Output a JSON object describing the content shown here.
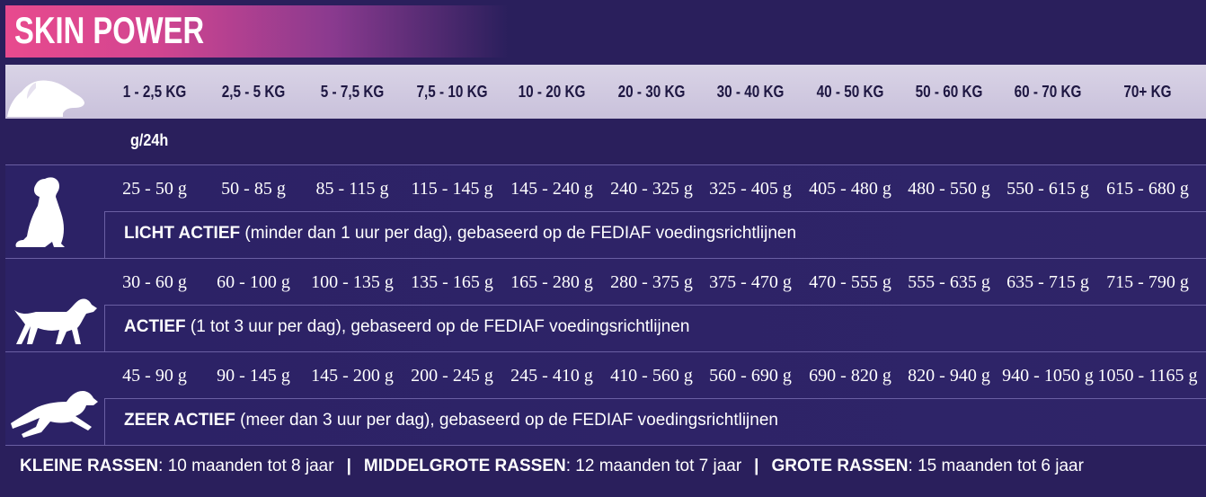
{
  "title": "SKIN POWER",
  "weight_ranges": [
    "1 - 2,5 KG",
    "2,5 - 5 KG",
    "5 - 7,5 KG",
    "7,5 - 10 KG",
    "10 - 20 KG",
    "20 - 30 KG",
    "30 - 40 KG",
    "40 - 50 KG",
    "50 - 60 KG",
    "60 - 70 KG",
    "70+ KG"
  ],
  "unit_label": "g/24h",
  "activity_levels": [
    {
      "icon": "sitting-dog-icon",
      "amounts": [
        "25 - 50 g",
        "50 - 85 g",
        "85 - 115 g",
        "115 - 145 g",
        "145 - 240 g",
        "240 - 325 g",
        "325 - 405 g",
        "405 - 480 g",
        "480 - 550 g",
        "550 - 615 g",
        "615 - 680 g"
      ],
      "label_bold": "LICHT ACTIEF",
      "label_rest": " (minder dan 1 uur per dag), gebaseerd op de FEDIAF voedingsrichtlijnen"
    },
    {
      "icon": "walking-dog-icon",
      "amounts": [
        "30 - 60 g",
        "60 - 100 g",
        "100 - 135 g",
        "135 - 165 g",
        "165 - 280 g",
        "280 - 375 g",
        "375 - 470 g",
        "470 - 555 g",
        "555 - 635 g",
        "635 - 715 g",
        "715 - 790 g"
      ],
      "label_bold": "ACTIEF",
      "label_rest": " (1 tot 3 uur per dag), gebaseerd op de FEDIAF voedingsrichtlijnen"
    },
    {
      "icon": "running-dog-icon",
      "amounts": [
        "45 - 90 g",
        "90 - 145 g",
        "145 - 200 g",
        "200 - 245 g",
        "245 - 410 g",
        "410 - 560 g",
        "560 - 690 g",
        "690 - 820 g",
        "820 - 940 g",
        "940 - 1050 g",
        "1050 - 1165 g"
      ],
      "label_bold": "ZEER ACTIEF",
      "label_rest": " (meer dan 3 uur per dag), gebaseerd op de FEDIAF voedingsrichtlijnen"
    }
  ],
  "footer": {
    "small_bold": "KLEINE RASSEN",
    "small_rest": ": 10 maanden tot 8 jaar",
    "medium_bold": "MIDDELGROTE RASSEN",
    "medium_rest": ": 12 maanden tot 7 jaar",
    "large_bold": "GROTE RASSEN",
    "large_rest": ": 15 maanden tot 6 jaar",
    "separator": "|"
  },
  "colors": {
    "background": "#2a1f5c",
    "title_gradient_start": "#e84a8e",
    "header_row": "#d9d3e6",
    "header_text": "#1e1742"
  }
}
